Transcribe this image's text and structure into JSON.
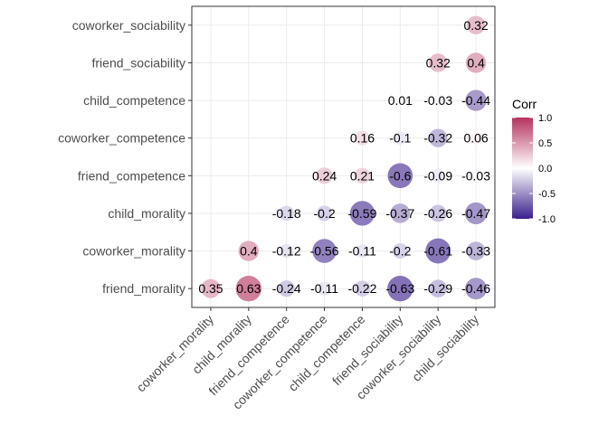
{
  "chart_data": {
    "type": "heatmap",
    "subtype": "correlation-circle-matrix",
    "x_labels": [
      "coworker_morality",
      "child_morality",
      "friend_competence",
      "coworker_competence",
      "child_competence",
      "friend_sociability",
      "coworker_sociability",
      "child_sociability"
    ],
    "y_labels": [
      "friend_morality",
      "coworker_morality",
      "child_morality",
      "friend_competence",
      "coworker_competence",
      "child_competence",
      "friend_sociability",
      "coworker_sociability"
    ],
    "values": [
      [
        0.35,
        0.63,
        -0.24,
        -0.11,
        -0.22,
        -0.63,
        -0.29,
        -0.46
      ],
      [
        null,
        0.4,
        -0.12,
        -0.56,
        -0.11,
        -0.2,
        -0.61,
        -0.33
      ],
      [
        null,
        null,
        -0.18,
        -0.2,
        -0.59,
        -0.37,
        -0.26,
        -0.47
      ],
      [
        null,
        null,
        null,
        0.24,
        0.21,
        -0.6,
        -0.09,
        -0.03
      ],
      [
        null,
        null,
        null,
        null,
        0.16,
        -0.1,
        -0.32,
        0.06
      ],
      [
        null,
        null,
        null,
        null,
        null,
        0.01,
        -0.03,
        -0.44
      ],
      [
        null,
        null,
        null,
        null,
        null,
        null,
        0.32,
        0.4
      ],
      [
        null,
        null,
        null,
        null,
        null,
        null,
        null,
        0.32
      ]
    ],
    "cell_labels": [
      [
        "0.35",
        "0.63",
        "-0.24",
        "-0.11",
        "-0.22",
        "-0.63",
        "-0.29",
        "-0.46"
      ],
      [
        null,
        "0.4",
        "-0.12",
        "-0.56",
        "-0.11",
        "-0.2",
        "-0.61",
        "-0.33"
      ],
      [
        null,
        null,
        "-0.18",
        "-0.2",
        "-0.59",
        "-0.37",
        "-0.26",
        "-0.47"
      ],
      [
        null,
        null,
        null,
        "0.24",
        "0.21",
        "-0.6",
        "-0.09",
        "-0.03"
      ],
      [
        null,
        null,
        null,
        null,
        "0.16",
        "-0.1",
        "-0.32",
        "0.06"
      ],
      [
        null,
        null,
        null,
        null,
        null,
        "0.01",
        "-0.03",
        "-0.44"
      ],
      [
        null,
        null,
        null,
        null,
        null,
        null,
        "0.32",
        "0.4"
      ],
      [
        null,
        null,
        null,
        null,
        null,
        null,
        null,
        "0.32"
      ]
    ],
    "legend": {
      "title": "Corr",
      "ticks": [
        1.0,
        0.5,
        0.0,
        -0.5,
        -1.0
      ],
      "tick_labels": [
        "1.0",
        "0.5",
        "0.0",
        "-0.5",
        "-1.0"
      ],
      "range": [
        -1,
        1
      ],
      "placement": "right"
    },
    "colors": {
      "low": "#3b1f8c",
      "mid": "#ffffff",
      "high": "#b5325f"
    },
    "grid": true,
    "x_tick_rotation": "45deg"
  }
}
